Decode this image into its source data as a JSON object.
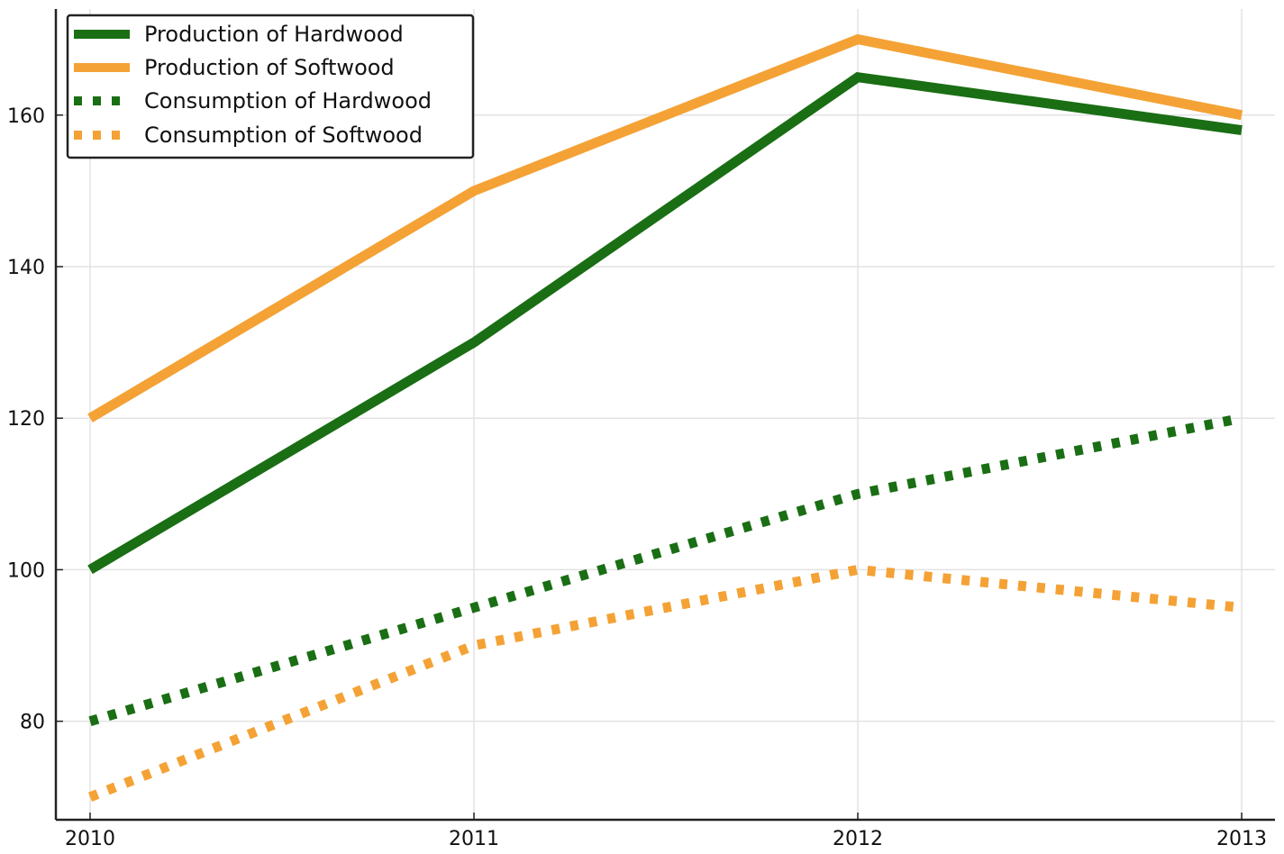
{
  "chart_data": {
    "type": "line",
    "x": [
      "2010",
      "2011",
      "2012",
      "2013"
    ],
    "x_ticks": [
      "2010",
      "2011",
      "2012",
      "2013"
    ],
    "y_ticks": [
      80,
      100,
      120,
      140,
      160
    ],
    "ylim": [
      67,
      174
    ],
    "grid": true,
    "legend_position": "top-left",
    "series": [
      {
        "name": "Production of Hardwood",
        "values": [
          100,
          130,
          165,
          158
        ],
        "color": "#1a6e14",
        "style": "solid"
      },
      {
        "name": "Production of Softwood",
        "values": [
          120,
          150,
          170,
          160
        ],
        "color": "#f4a235",
        "style": "solid"
      },
      {
        "name": "Consumption of Hardwood",
        "values": [
          80,
          95,
          110,
          120
        ],
        "color": "#1a6e14",
        "style": "dotted"
      },
      {
        "name": "Consumption of Softwood",
        "values": [
          70,
          90,
          100,
          95
        ],
        "color": "#f4a235",
        "style": "dotted"
      }
    ]
  }
}
